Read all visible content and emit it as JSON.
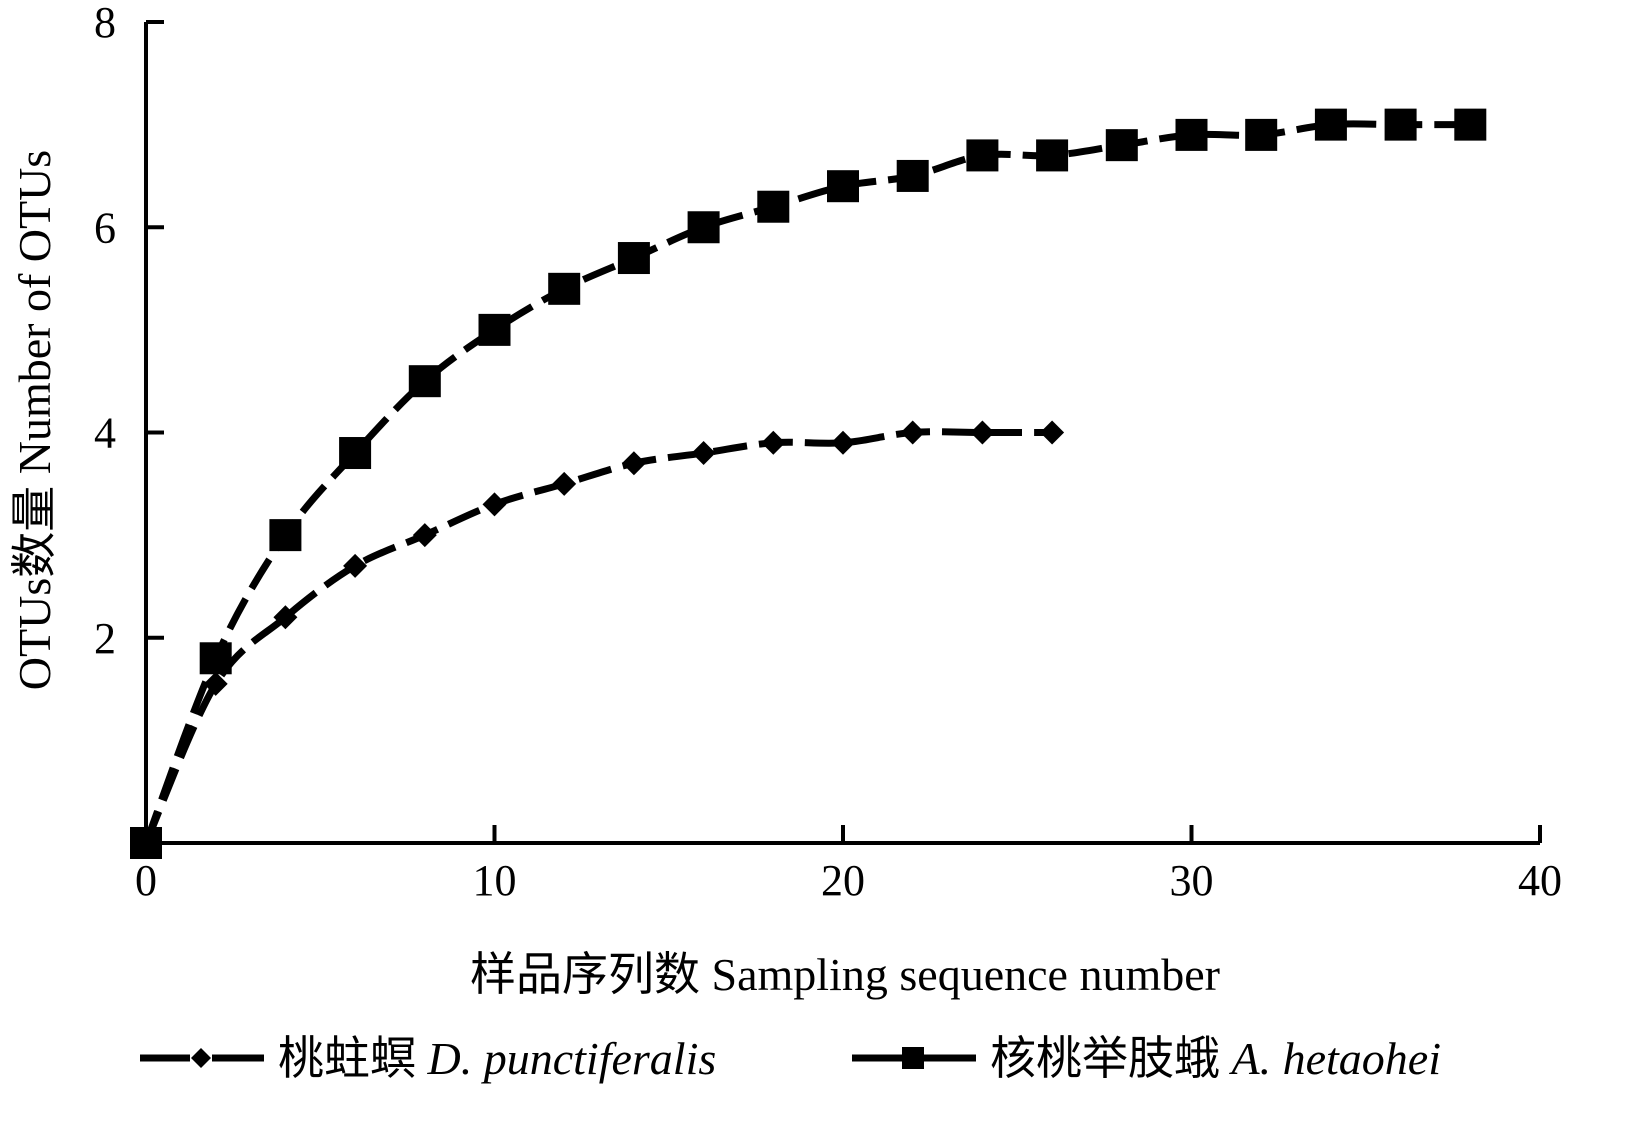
{
  "chart_data": {
    "type": "line",
    "xlabel": "样品序列数 Sampling sequence number",
    "ylabel": "OTUs数量 Number of OTUs",
    "xlim": [
      0,
      40
    ],
    "ylim": [
      0,
      8
    ],
    "xticks": [
      "0",
      "10",
      "20",
      "30",
      "40"
    ],
    "yticks": [
      "2",
      "4",
      "6",
      "8"
    ],
    "grid": false,
    "legend_position": "bottom",
    "series": [
      {
        "name": "桃蛀螟",
        "name_sci": "D. punctiferalis",
        "marker": "diamond",
        "line_style": "dashed",
        "color": "#000000",
        "x": [
          0,
          2,
          4,
          6,
          8,
          10,
          12,
          14,
          16,
          18,
          20,
          22,
          24,
          26
        ],
        "y": [
          0,
          1.55,
          2.2,
          2.7,
          3.0,
          3.3,
          3.5,
          3.7,
          3.8,
          3.9,
          3.9,
          4.0,
          4.0,
          4.0
        ]
      },
      {
        "name": "核桃举肢蛾",
        "name_sci": "A. hetaohei",
        "marker": "square",
        "line_style": "dashed",
        "color": "#000000",
        "x": [
          0,
          2,
          4,
          6,
          8,
          10,
          12,
          14,
          16,
          18,
          20,
          22,
          24,
          26,
          28,
          30,
          32,
          34,
          36,
          38
        ],
        "y": [
          0,
          1.8,
          3.0,
          3.8,
          4.5,
          5.0,
          5.4,
          5.7,
          6.0,
          6.2,
          6.4,
          6.5,
          6.7,
          6.7,
          6.8,
          6.9,
          6.9,
          7.0,
          7.0,
          7.0
        ]
      }
    ]
  }
}
